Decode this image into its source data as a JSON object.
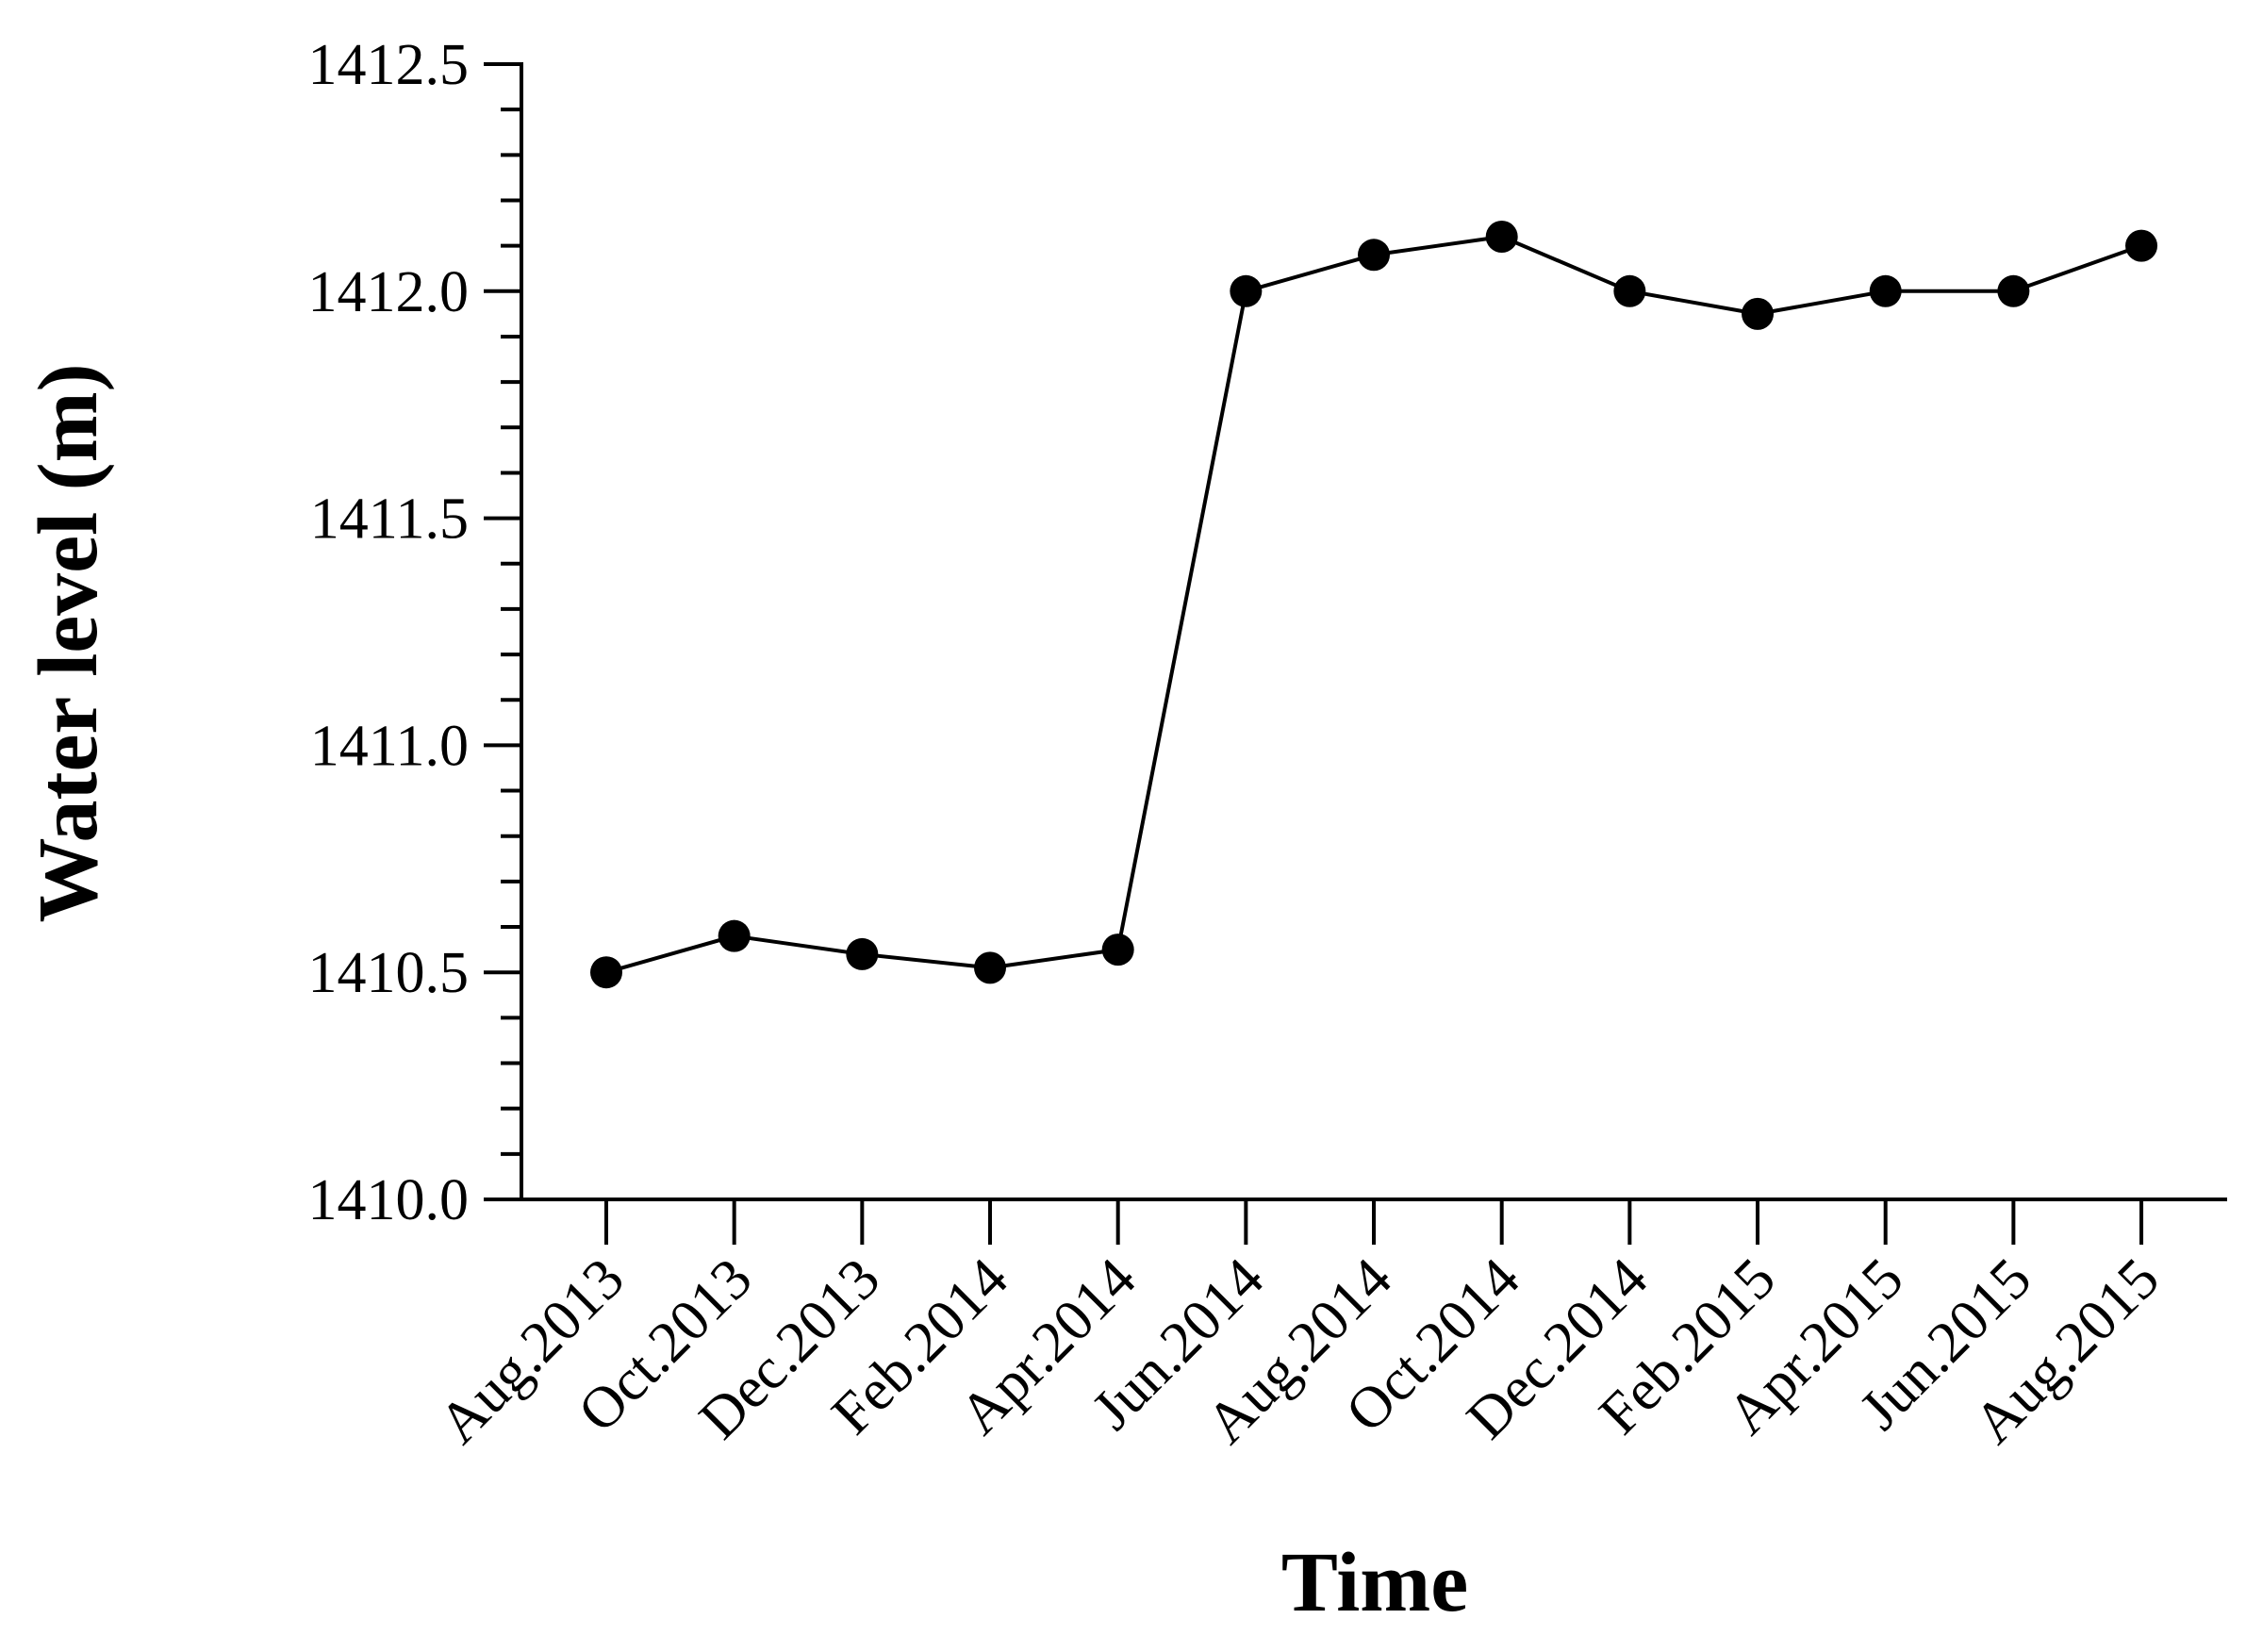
{
  "chart_data": {
    "type": "line",
    "xlabel": "Time",
    "ylabel": "Water level (m)",
    "categories": [
      "Aug.2013",
      "Oct.2013",
      "Dec.2013",
      "Feb.2014",
      "Apr.2014",
      "Jun.2014",
      "Aug.2014",
      "Oct.2014",
      "Dec.2014",
      "Feb.2015",
      "Apr.2015",
      "Jun.2015",
      "Aug.2015"
    ],
    "series": [
      {
        "values": [
          1410.5,
          1410.58,
          1410.54,
          1410.51,
          1410.55,
          1412.0,
          1412.08,
          1412.12,
          1412.0,
          1411.95,
          1412.0,
          1412.0,
          1412.1
        ]
      }
    ],
    "ylim": [
      1410.0,
      1412.5
    ],
    "yticks": [
      "1410.0",
      "1410.5",
      "1411.0",
      "1411.5",
      "1412.0",
      "1412.5"
    ],
    "grid": false,
    "color": "#000000"
  }
}
